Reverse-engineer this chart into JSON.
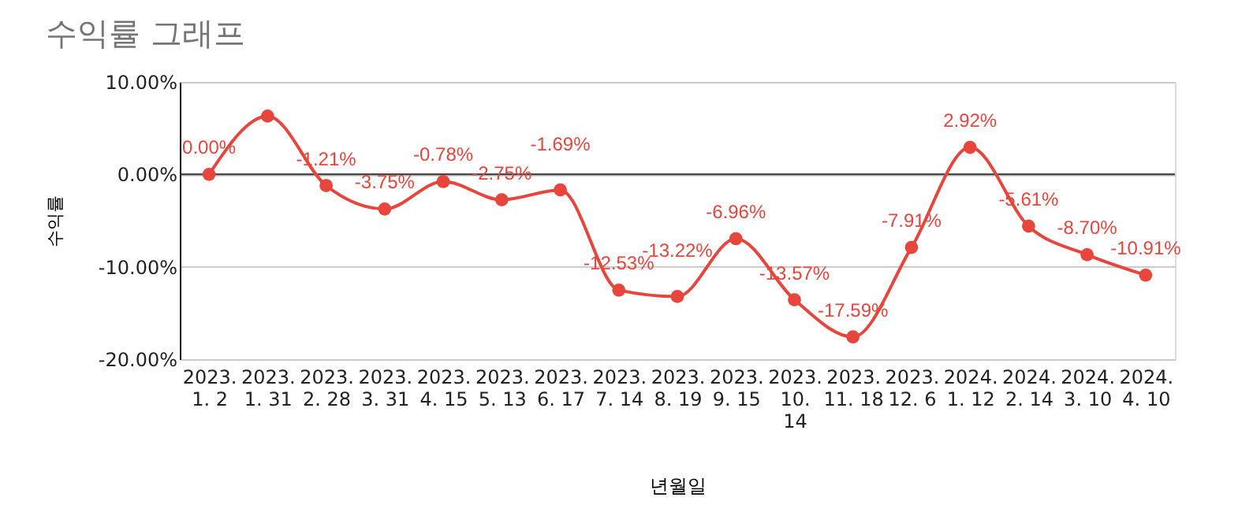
{
  "chart_data": {
    "type": "line",
    "title": "수익률 그래프",
    "xlabel": "년월일",
    "ylabel": "수익률",
    "categories": [
      "2023.\n1. 2",
      "2023.\n1. 31",
      "2023.\n2. 28",
      "2023.\n3. 31",
      "2023.\n4. 15",
      "2023.\n5. 13",
      "2023.\n6. 17",
      "2023.\n7. 14",
      "2023.\n8. 19",
      "2023.\n9. 15",
      "2023.\n10.\n14",
      "2023.\n11. 18",
      "2023.\n12. 6",
      "2024.\n1. 12",
      "2024.\n2. 14",
      "2024.\n3. 10",
      "2024.\n4. 10"
    ],
    "series": [
      {
        "color": "#e8453c",
        "values": [
          0.0,
          6.3,
          -1.21,
          -3.75,
          -0.78,
          -2.75,
          -1.69,
          -12.53,
          -13.22,
          -6.96,
          -13.57,
          -17.59,
          -7.91,
          2.92,
          -5.61,
          -8.7,
          -10.91
        ],
        "value_labels": [
          "0.00%",
          null,
          "-1.21%",
          "-3.75%",
          "-0.78%",
          "-2.75%",
          "-1.69%",
          "-12.53%",
          "-13.22%",
          "-6.96%",
          "-13.57%",
          "-17.59%",
          "-7.91%",
          "2.92%",
          "-5.61%",
          "-8.70%",
          "-10.91%"
        ]
      }
    ],
    "ylim": [
      -20,
      10
    ],
    "yticks": [
      {
        "value": -20,
        "label": "-20.00%"
      },
      {
        "value": -10,
        "label": "-10.00%"
      },
      {
        "value": 0,
        "label": "0.00%"
      },
      {
        "value": 10,
        "label": "10.00%"
      }
    ],
    "ref_lines": [
      {
        "axis": "y",
        "value": 0,
        "color": "#333333"
      }
    ],
    "grid": "y",
    "legend": false,
    "marker": "circle",
    "line_style": "solid"
  }
}
